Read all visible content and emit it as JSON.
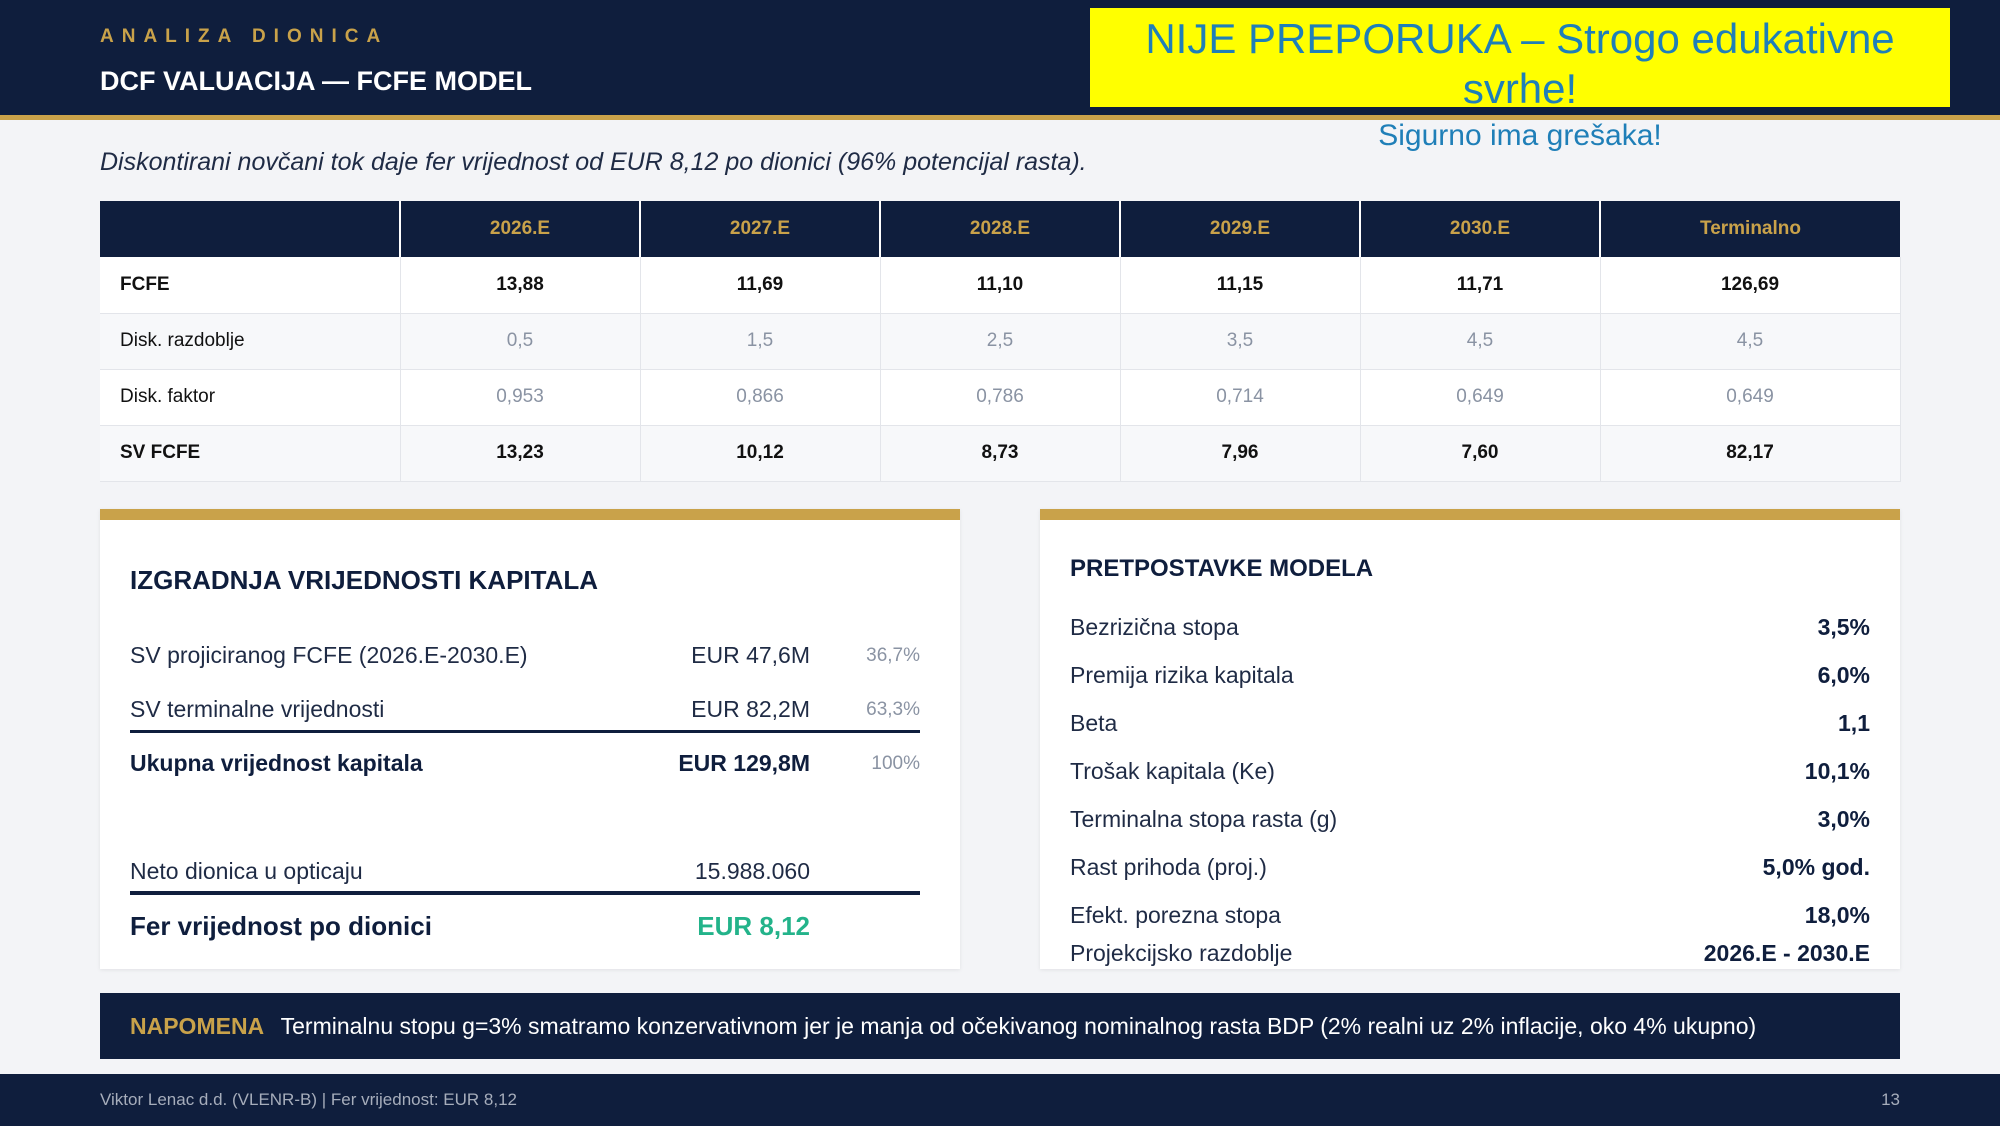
{
  "header": {
    "eyebrow": "ANALIZA DIONICA",
    "title": "DCF VALUACIJA — FCFE MODEL"
  },
  "warning": {
    "line1": "NIJE PREPORUKA – Strogo edukativne svrhe!",
    "line2": "Sigurno ima grešaka!"
  },
  "subtitle": "Diskontirani novčani tok daje fer vrijednost od EUR 8,12 po dionici (96% potencijal rasta).",
  "table": {
    "columns": [
      "",
      "2026.E",
      "2027.E",
      "2028.E",
      "2029.E",
      "2030.E",
      "Terminalno"
    ],
    "rows": [
      {
        "label": "FCFE",
        "values": [
          "13,88",
          "11,69",
          "11,10",
          "11,15",
          "11,71",
          "126,69"
        ]
      },
      {
        "label": "Disk. razdoblje",
        "values": [
          "0,5",
          "1,5",
          "2,5",
          "3,5",
          "4,5",
          "4,5"
        ]
      },
      {
        "label": "Disk. faktor",
        "values": [
          "0,953",
          "0,866",
          "0,786",
          "0,714",
          "0,649",
          "0,649"
        ]
      },
      {
        "label": "SV FCFE",
        "values": [
          "13,23",
          "10,12",
          "8,73",
          "7,96",
          "7,60",
          "82,17"
        ]
      }
    ]
  },
  "build": {
    "title": "IZGRADNJA VRIJEDNOSTI KAPITALA",
    "rows": [
      {
        "label": "SV projiciranog FCFE (2026.E-2030.E)",
        "value": "EUR 47,6M",
        "pct": "36,7%"
      },
      {
        "label": "SV terminalne vrijednosti",
        "value": "EUR 82,2M",
        "pct": "63,3%"
      },
      {
        "label": "Ukupna vrijednost kapitala",
        "value": "EUR 129,8M",
        "pct": "100%"
      }
    ],
    "shares": {
      "label": "Neto dionica u opticaju",
      "value": "15.988.060"
    },
    "fair": {
      "label": "Fer vrijednost po dionici",
      "value": "EUR 8,12"
    },
    "accent_color": "#23b38a"
  },
  "assumptions": {
    "title": "PRETPOSTAVKE MODELA",
    "rows": [
      {
        "label": "Bezrizična stopa",
        "value": "3,5%"
      },
      {
        "label": "Premija rizika kapitala",
        "value": "6,0%"
      },
      {
        "label": "Beta",
        "value": "1,1"
      },
      {
        "label": "Trošak kapitala (Ke)",
        "value": "10,1%"
      },
      {
        "label": "Terminalna stopa rasta (g)",
        "value": "3,0%"
      },
      {
        "label": "Rast prihoda (proj.)",
        "value": "5,0% god."
      },
      {
        "label": "Efekt. porezna stopa",
        "value": "18,0%"
      },
      {
        "label": "Projekcijsko razdoblje",
        "value": "2026.E - 2030.E"
      }
    ]
  },
  "note": {
    "tag": "NAPOMENA",
    "text": "Terminalnu stopu g=3% smatramo konzervativnom jer je manja od očekivanog nominalnog rasta BDP (2% realni uz 2% inflacije, oko 4% ukupno)"
  },
  "footer": {
    "left": "Viktor Lenac d.d. (VLENR-B)  |  Fer vrijednost: EUR 8,12",
    "page": "13"
  },
  "colors": {
    "navy": "#0f1e3d",
    "gold": "#c9a24a",
    "warning_bg": "#ffff00",
    "warning_text": "#1f7fb8"
  }
}
